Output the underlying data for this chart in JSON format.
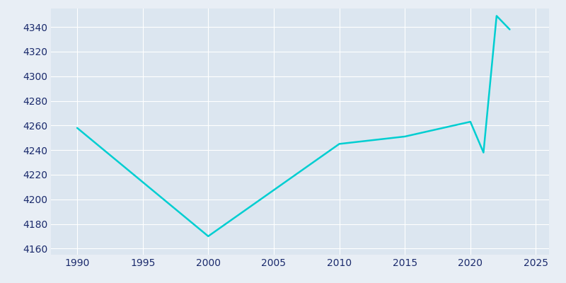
{
  "years": [
    1990,
    2000,
    2010,
    2015,
    2020,
    2021,
    2022,
    2023
  ],
  "population": [
    4258,
    4170,
    4245,
    4251,
    4263,
    4238,
    4349,
    4338
  ],
  "line_color": "#00CED1",
  "background_color": "#e8eef5",
  "plot_bg_color": "#dce6f0",
  "text_color": "#1a2a6c",
  "xlim": [
    1988,
    2026
  ],
  "ylim": [
    4155,
    4355
  ],
  "yticks": [
    4160,
    4180,
    4200,
    4220,
    4240,
    4260,
    4280,
    4300,
    4320,
    4340
  ],
  "xticks": [
    1990,
    1995,
    2000,
    2005,
    2010,
    2015,
    2020,
    2025
  ],
  "line_width": 1.8,
  "grid_color": "#ffffff",
  "grid_alpha": 1.0,
  "grid_linewidth": 0.8
}
